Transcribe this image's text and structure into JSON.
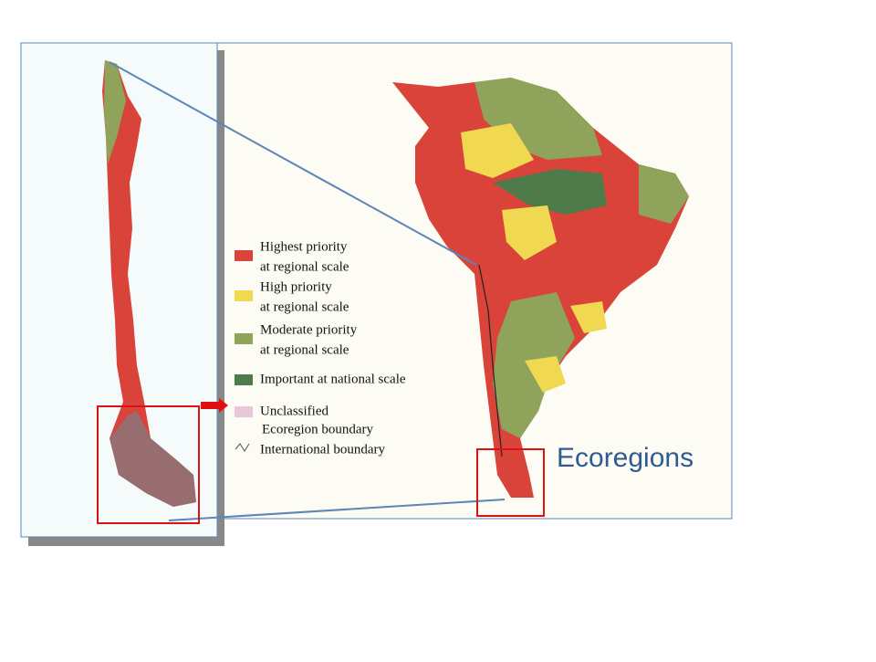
{
  "title": "Ecoregions",
  "legend": [
    {
      "lines": [
        "Highest priority",
        "at regional scale"
      ],
      "color": "#d9433a"
    },
    {
      "lines": [
        "High priority",
        "at regional scale"
      ],
      "color": "#f0d850"
    },
    {
      "lines": [
        "Moderate priority",
        "at regional scale"
      ],
      "color": "#8fa35a"
    },
    {
      "lines": [
        "Important at national scale"
      ],
      "color": "#4f7a4a"
    },
    {
      "lines": [
        "Unclassified"
      ],
      "color": "#e8c8d8"
    },
    {
      "lines": [
        "Ecoregion boundary"
      ]
    },
    {
      "lines": [
        "International boundary"
      ]
    }
  ]
}
